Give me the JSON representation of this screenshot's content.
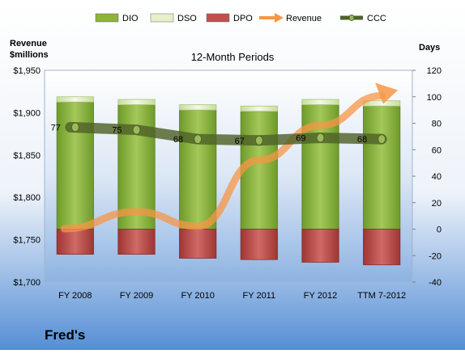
{
  "chart_data": {
    "type": "bar",
    "subtitle": "12-Month Periods",
    "footer_title": "Fred's",
    "left_axis_label_line1": "Revenue",
    "left_axis_label_line2": "$millions",
    "right_axis_label": "Days",
    "categories": [
      "FY 2008",
      "FY 2009",
      "FY 2010",
      "FY 2011",
      "FY 2012",
      "TTM 7-2012"
    ],
    "left_axis": {
      "min": 1700,
      "max": 1950,
      "ticks": [
        "$1,700",
        "$1,750",
        "$1,800",
        "$1,850",
        "$1,900",
        "$1,950"
      ]
    },
    "right_axis": {
      "min": -40,
      "max": 120,
      "ticks": [
        "-40",
        "-20",
        "0",
        "20",
        "40",
        "60",
        "80",
        "100",
        "120"
      ]
    },
    "legend": [
      {
        "name": "DIO",
        "kind": "box",
        "color": "#8CB43C"
      },
      {
        "name": "DSO",
        "kind": "box",
        "color": "#E6F0C8"
      },
      {
        "name": "DPO",
        "kind": "box",
        "color": "#C0504D"
      },
      {
        "name": "Revenue",
        "kind": "arrow",
        "color": "#F79646"
      },
      {
        "name": "CCC",
        "kind": "line",
        "color": "#4F6228"
      }
    ],
    "series": [
      {
        "name": "DIO",
        "axis": "right",
        "values": [
          96,
          94,
          90,
          89,
          94,
          93
        ]
      },
      {
        "name": "DSO",
        "axis": "right",
        "values": [
          4,
          4,
          4,
          4,
          4,
          4
        ]
      },
      {
        "name": "DPO",
        "axis": "right",
        "values": [
          -19,
          -19,
          -22,
          -23,
          -25,
          -27
        ]
      },
      {
        "name": "Revenue",
        "axis": "left",
        "values": [
          1763,
          1783,
          1766,
          1844,
          1885,
          1920
        ]
      },
      {
        "name": "CCC",
        "axis": "right",
        "values": [
          77,
          75,
          68,
          67,
          69,
          68
        ]
      }
    ],
    "ccc_labels": [
      "77",
      "75",
      "68",
      "67",
      "69",
      "68"
    ],
    "colors": {
      "plot_background_top": "#FFFFFF",
      "plot_background_bottom": "#8DB3E2",
      "page_background_top": "#FFFFFF",
      "page_background_bottom": "#558ED5"
    }
  }
}
